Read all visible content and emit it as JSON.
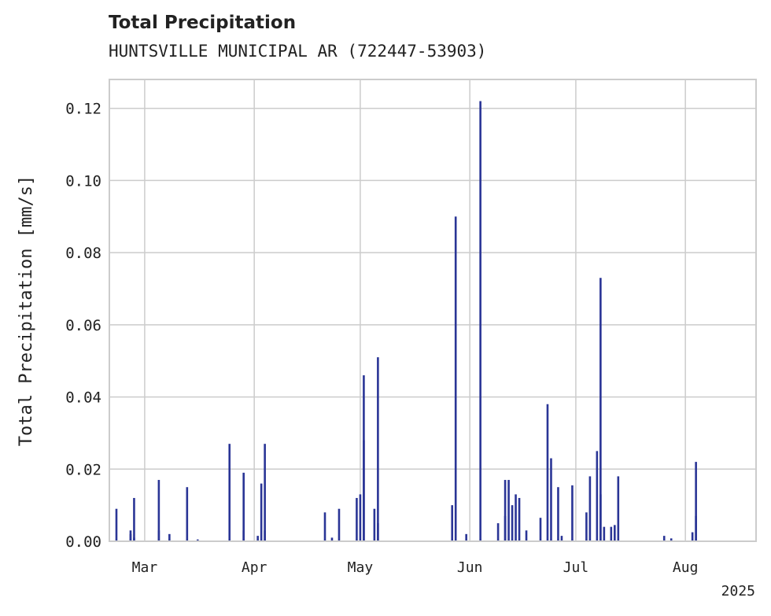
{
  "chart_data": {
    "type": "bar",
    "title": "Total Precipitation",
    "subtitle": "HUNTSVILLE MUNICIPAL AR (722447-53903)",
    "ylabel": "Total Precipitation [mm/s]",
    "xlabel": "",
    "year_label": "2025",
    "ylim": [
      0,
      0.128
    ],
    "xlim": [
      "2025-02-19",
      "2025-08-21"
    ],
    "y_ticks": [
      "0.00",
      "0.02",
      "0.04",
      "0.06",
      "0.08",
      "0.10",
      "0.12"
    ],
    "x_ticks": [
      {
        "date": "2025-03-01",
        "label": "Mar"
      },
      {
        "date": "2025-04-01",
        "label": "Apr"
      },
      {
        "date": "2025-05-01",
        "label": "May"
      },
      {
        "date": "2025-06-01",
        "label": "Jun"
      },
      {
        "date": "2025-07-01",
        "label": "Jul"
      },
      {
        "date": "2025-08-01",
        "label": "Aug"
      }
    ],
    "grid": true,
    "bar_color": "#2a3596",
    "series": [
      {
        "x": [
          "2025-02-21",
          "2025-02-25",
          "2025-02-25",
          "2025-02-26",
          "2025-02-26",
          "2025-03-05",
          "2025-03-05",
          "2025-03-08",
          "2025-03-13",
          "2025-03-16",
          "2025-03-25",
          "2025-03-29",
          "2025-03-29",
          "2025-04-02",
          "2025-04-03",
          "2025-04-04",
          "2025-04-04",
          "2025-04-21",
          "2025-04-23",
          "2025-04-25",
          "2025-04-30",
          "2025-05-01",
          "2025-05-02",
          "2025-05-02",
          "2025-05-05",
          "2025-05-06",
          "2025-05-06",
          "2025-05-27",
          "2025-05-28",
          "2025-05-31",
          "2025-06-04",
          "2025-06-09",
          "2025-06-11",
          "2025-06-11",
          "2025-06-12",
          "2025-06-13",
          "2025-06-14",
          "2025-06-15",
          "2025-06-17",
          "2025-06-21",
          "2025-06-23",
          "2025-06-24",
          "2025-06-26",
          "2025-06-27",
          "2025-06-30",
          "2025-07-04",
          "2025-07-05",
          "2025-07-07",
          "2025-07-08",
          "2025-07-08",
          "2025-07-09",
          "2025-07-11",
          "2025-07-12",
          "2025-07-13",
          "2025-07-26",
          "2025-07-28",
          "2025-08-03",
          "2025-08-04",
          "2025-08-04"
        ],
        "values": [
          0.009,
          0.002,
          0.003,
          0.012,
          0.001,
          0.017,
          0.003,
          0.002,
          0.015,
          0.0005,
          0.027,
          0.019,
          0.003,
          0.0015,
          0.016,
          0.027,
          0.003,
          0.008,
          0.001,
          0.009,
          0.012,
          0.013,
          0.046,
          0.028,
          0.009,
          0.051,
          0.005,
          0.01,
          0.09,
          0.002,
          0.122,
          0.005,
          0.017,
          0.007,
          0.017,
          0.01,
          0.013,
          0.012,
          0.003,
          0.0065,
          0.038,
          0.023,
          0.015,
          0.0015,
          0.0155,
          0.008,
          0.018,
          0.025,
          0.073,
          0.013,
          0.004,
          0.004,
          0.0045,
          0.018,
          0.0015,
          0.0008,
          0.0025,
          0.022,
          0.007
        ]
      }
    ]
  }
}
